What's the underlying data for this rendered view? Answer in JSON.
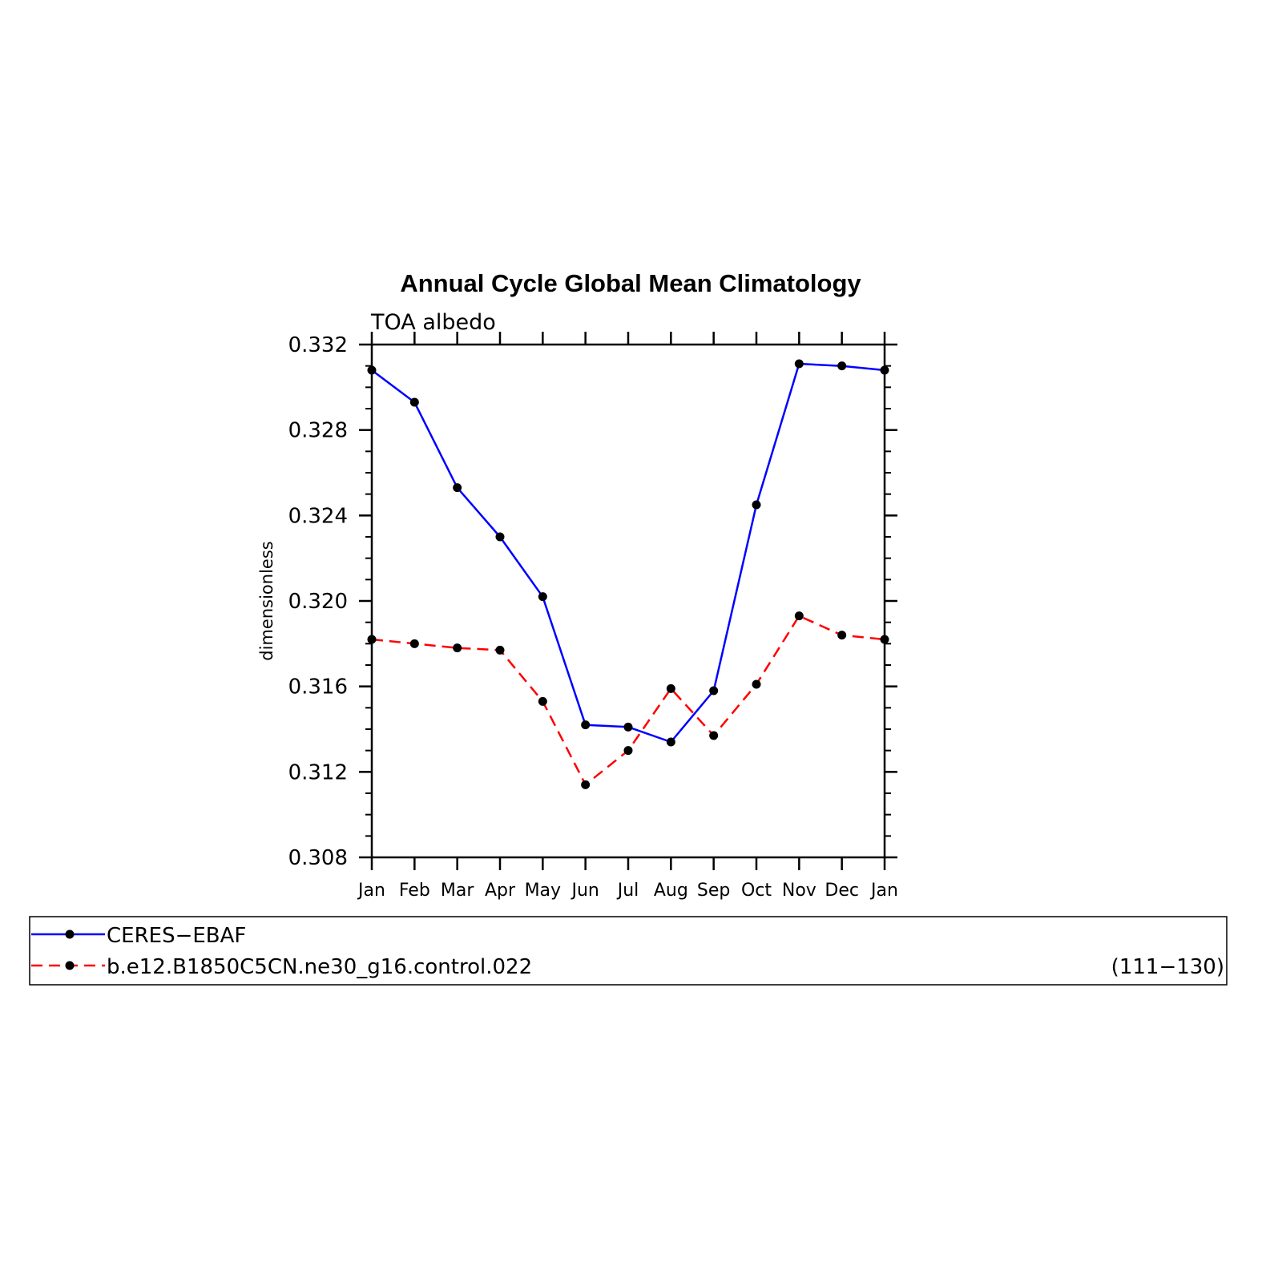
{
  "chart_data": {
    "type": "line",
    "title": "Annual Cycle Global Mean Climatology",
    "subtitle": "TOA albedo",
    "ylabel": "dimensionless",
    "xlabel": "",
    "categories": [
      "Jan",
      "Feb",
      "Mar",
      "Apr",
      "May",
      "Jun",
      "Jul",
      "Aug",
      "Sep",
      "Oct",
      "Nov",
      "Dec",
      "Jan"
    ],
    "ylim": [
      0.308,
      0.332
    ],
    "yticks": [
      "0.308",
      "0.312",
      "0.316",
      "0.320",
      "0.324",
      "0.328",
      "0.332"
    ],
    "grid": false,
    "legend_position": "bottom",
    "series": [
      {
        "name": "CERES−EBAF",
        "color": "#0000ff",
        "dash": "solid",
        "marker": "dot",
        "values": [
          0.3308,
          0.3293,
          0.3253,
          0.323,
          0.3202,
          0.3142,
          0.3141,
          0.3134,
          0.3158,
          0.3245,
          0.3311,
          0.331,
          0.3308
        ]
      },
      {
        "name": "b.e12.B1850C5CN.ne30_g16.control.022",
        "color": "#ff0000",
        "dash": "dashed",
        "marker": "dot",
        "values": [
          0.3182,
          0.318,
          0.3178,
          0.3177,
          0.3153,
          0.3114,
          0.313,
          0.3159,
          0.3137,
          0.3161,
          0.3193,
          0.3184,
          0.3182
        ]
      }
    ],
    "legend_note": "(111−130)"
  }
}
